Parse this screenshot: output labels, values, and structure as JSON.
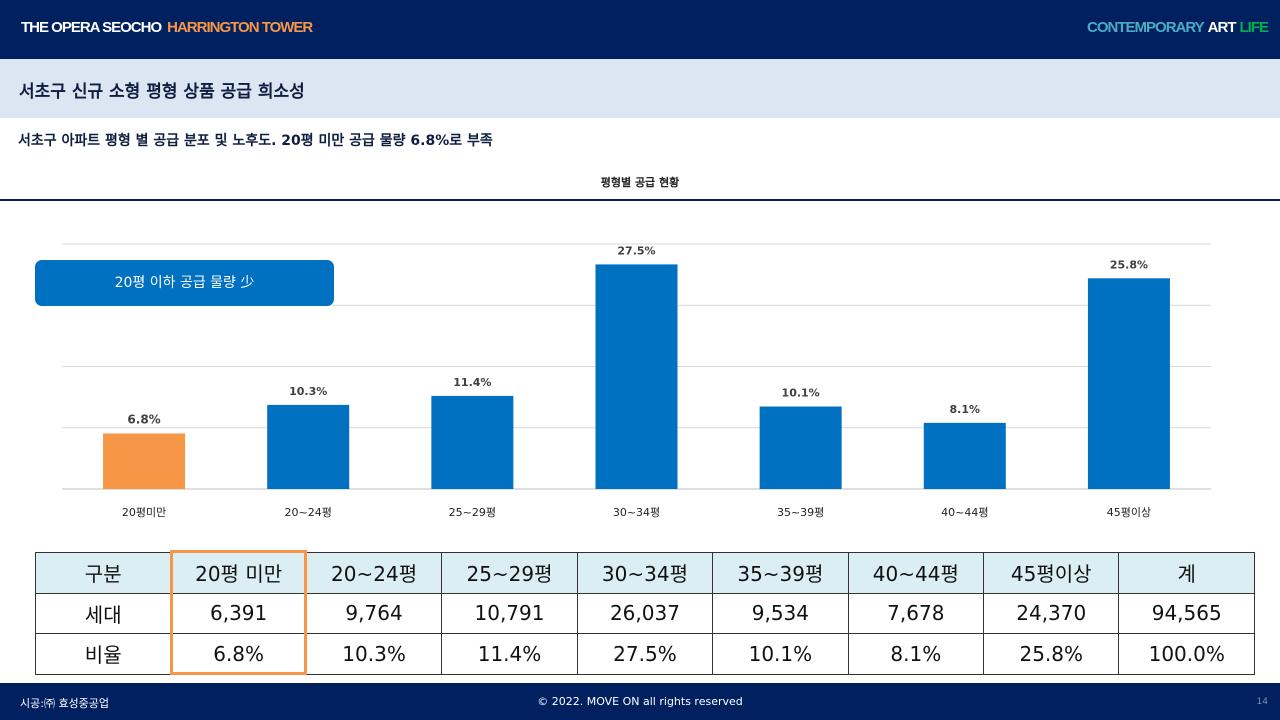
{
  "header": {
    "brand_main": "THE OPERA SEOCHO",
    "brand_accent": "HARRINGTON TOWER",
    "tag_1": "CONTEMPORARY",
    "tag_2": "ART",
    "tag_3": "LIFE"
  },
  "title": "서초구 신규 소형 평형 상품 공급 희소성",
  "subtitle": "서초구 아파트 평형 별 공급 분포 및 노후도. 20평 미만 공급 물량 6.8%로 부족",
  "callout": "20평 이하 공급 물량 少",
  "chart_data": {
    "type": "bar",
    "title": "평형별 공급 현황",
    "categories": [
      "20평미만",
      "20~24평",
      "25~29평",
      "30~34평",
      "35~39평",
      "40~44평",
      "45평이상"
    ],
    "values": [
      6.8,
      10.3,
      11.4,
      27.5,
      10.1,
      8.1,
      25.8
    ],
    "labels": [
      "6.8%",
      "10.3%",
      "11.4%",
      "27.5%",
      "10.1%",
      "8.1%",
      "25.8%"
    ],
    "ylim": [
      0,
      30
    ],
    "grid": true,
    "colors": [
      "#f79646",
      "#0070c0",
      "#0070c0",
      "#0070c0",
      "#0070c0",
      "#0070c0",
      "#0070c0"
    ]
  },
  "table": {
    "header": [
      "구분",
      "20평 미만",
      "20~24평",
      "25~29평",
      "30~34평",
      "35~39평",
      "40~44평",
      "45평이상",
      "계"
    ],
    "rows": [
      [
        "세대",
        "6,391",
        "9,764",
        "10,791",
        "26,037",
        "9,534",
        "7,678",
        "24,370",
        "94,565"
      ],
      [
        "비율",
        "6.8%",
        "10.3%",
        "11.4%",
        "27.5%",
        "10.1%",
        "8.1%",
        "25.8%",
        "100.0%"
      ]
    ]
  },
  "footer": {
    "left": "시공:㈜ 효성중공업",
    "center": "© 2022. MOVE ON all rights reserved",
    "page": "14"
  }
}
